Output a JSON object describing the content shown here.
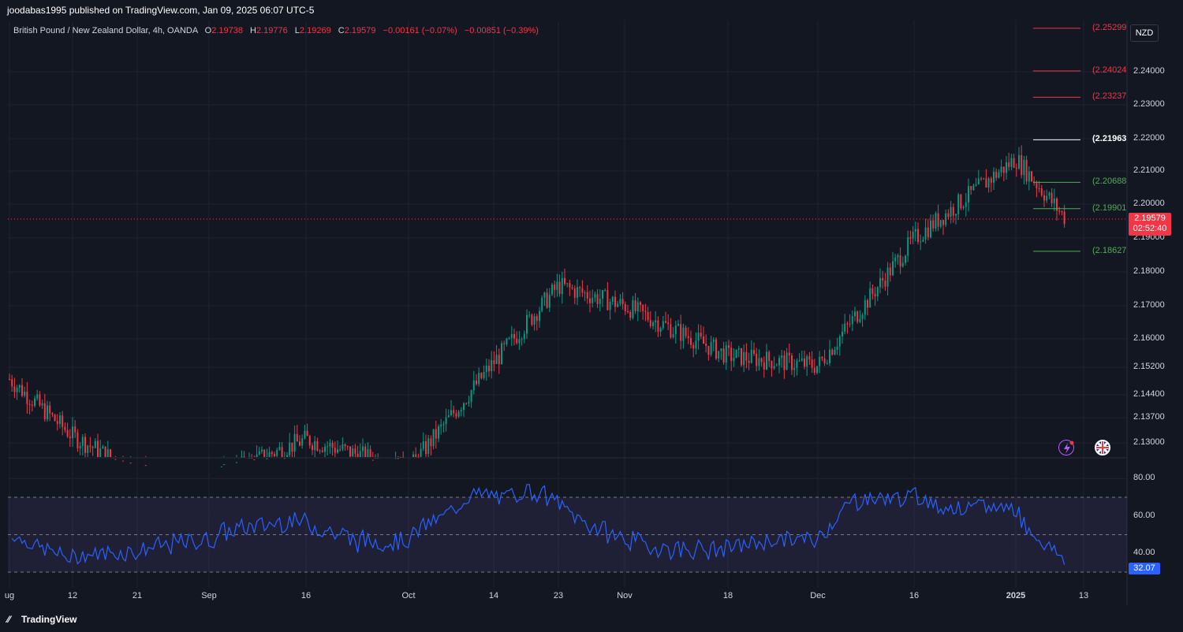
{
  "header": {
    "published": "joodabas1995 published on TradingView.com, Jan 09, 2025 06:07 UTC-5"
  },
  "legend": {
    "symbol": "British Pound / New Zealand Dollar, 4h, OANDA",
    "o_key": "O",
    "o_val": "2.19738",
    "h_key": "H",
    "h_val": "2.19776",
    "l_key": "L",
    "l_val": "2.19269",
    "c_key": "C",
    "c_val": "2.19579",
    "change": "−0.00161 (−0.07%)",
    "change2": "−0.00851 (−0.39%)"
  },
  "currency_button": "NZD",
  "price_axis": {
    "labels": [
      "2.24000",
      "2.23000",
      "2.22000",
      "2.21000",
      "2.20000",
      "2.19000",
      "2.18000",
      "2.17000",
      "2.16000",
      "2.15200",
      "2.14400",
      "2.13700",
      "2.13000"
    ]
  },
  "current_price": {
    "value": "2.19579",
    "countdown": "02:52:40"
  },
  "levels": [
    {
      "label": "(2.25299",
      "color": "#f23645",
      "price": 2.25299
    },
    {
      "label": "(2.24024",
      "color": "#f23645",
      "price": 2.24024
    },
    {
      "label": "(2.23237",
      "color": "#f23645",
      "price": 2.23237
    },
    {
      "label": "(2.21963",
      "color": "#ffffff",
      "price": 2.21963
    },
    {
      "label": "(2.20688",
      "color": "#4caf50",
      "price": 2.20688
    },
    {
      "label": "(2.19901",
      "color": "#4caf50",
      "price": 2.19901
    },
    {
      "label": "(2.18627",
      "color": "#4caf50",
      "price": 2.18627
    }
  ],
  "rsi": {
    "labels": [
      "80.00",
      "60.00",
      "40.00"
    ],
    "current": "32.07",
    "upper": 70,
    "lower": 30,
    "mid": 50,
    "line_color": "#2962ff",
    "band_color": "#7e57c2"
  },
  "time_axis": {
    "labels": [
      "ug",
      "12",
      "21",
      "Sep",
      "16",
      "Oct",
      "14",
      "23",
      "Nov",
      "18",
      "Dec",
      "16",
      "2025",
      "13"
    ]
  },
  "footer": {
    "brand": "TradingView"
  },
  "colors": {
    "up": "#089981",
    "down": "#f23645",
    "background": "#131722",
    "grid": "#1f2330"
  },
  "chart_data": {
    "type": "candlestick",
    "title": "British Pound / New Zealand Dollar, 4h, OANDA",
    "ylim": [
      2.125,
      2.258
    ],
    "close_path_anchors": [
      [
        "ug",
        2.148
      ],
      [
        "12",
        2.131
      ],
      [
        "21",
        2.12
      ],
      [
        "Sep",
        2.118
      ],
      [
        "16",
        2.13
      ],
      [
        "Oct",
        2.121
      ],
      [
        "14",
        2.153
      ],
      [
        "23",
        2.176
      ],
      [
        "Nov",
        2.17
      ],
      [
        "18",
        2.155
      ],
      [
        "Dec",
        2.152
      ],
      [
        "16",
        2.19
      ],
      [
        "2025",
        2.214
      ],
      [
        "last",
        2.19579
      ]
    ]
  }
}
